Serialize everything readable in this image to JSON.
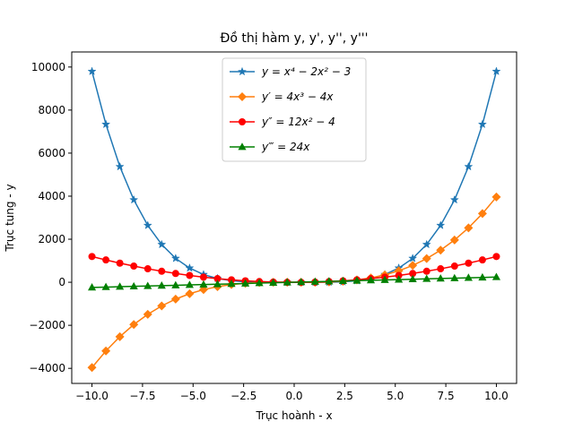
{
  "chart_data": {
    "type": "line",
    "title": "Đồ thị hàm y, y', y'', y'''",
    "xlabel": "Trục hoành - x",
    "ylabel": "Trục tung - y",
    "xlim": [
      -11,
      11
    ],
    "ylim": [
      -4700,
      10700
    ],
    "xticks": [
      -10.0,
      -7.5,
      -5.0,
      -2.5,
      0.0,
      2.5,
      5.0,
      7.5,
      10.0
    ],
    "xtick_labels": [
      "−10.0",
      "−7.5",
      "−5.0",
      "−2.5",
      "0.0",
      "2.5",
      "5.0",
      "7.5",
      "10.0"
    ],
    "yticks": [
      -4000,
      -2000,
      0,
      2000,
      4000,
      6000,
      8000,
      10000
    ],
    "ytick_labels": [
      "−4000",
      "−2000",
      "0",
      "2000",
      "4000",
      "6000",
      "8000",
      "10000"
    ],
    "grid": false,
    "legend_position": "top-center",
    "x": [
      -10.0,
      -9.31,
      -8.621,
      -7.931,
      -7.241,
      -6.552,
      -5.862,
      -5.172,
      -4.483,
      -3.793,
      -3.103,
      -2.414,
      -1.724,
      -1.034,
      -0.345,
      0.345,
      1.034,
      1.724,
      2.414,
      3.103,
      3.793,
      4.483,
      5.172,
      5.862,
      6.552,
      7.241,
      7.931,
      8.621,
      9.31,
      10.0
    ],
    "series": [
      {
        "name": "y = x⁴ − 2x² − 3",
        "color": "#1f77b4",
        "marker": "star",
        "values": [
          9797,
          7336,
          5371,
          3829,
          2641,
          1754,
          1109,
          659,
          360,
          175,
          70,
          19,
          0,
          -4,
          -3,
          -3,
          -4,
          0,
          19,
          70,
          175,
          360,
          659,
          1109,
          1754,
          2641,
          3829,
          5371,
          7336,
          9797
        ]
      },
      {
        "name": "y′ = 4x³ − 4x",
        "color": "#ff7f0e",
        "marker": "diamond",
        "values": [
          -3960,
          -3190,
          -2528,
          -1964,
          -1490,
          -1099,
          -782,
          -533,
          -342,
          -203,
          -107,
          -47,
          -14,
          0,
          1,
          -1,
          0,
          14,
          47,
          107,
          203,
          342,
          533,
          782,
          1099,
          1490,
          1964,
          2528,
          3190,
          3960
        ]
      },
      {
        "name": "y″ = 12x² − 4",
        "color": "#ff0000",
        "marker": "circle",
        "values": [
          1196,
          1036,
          888,
          751,
          625,
          511,
          408,
          317,
          237,
          169,
          112,
          66,
          32,
          9,
          -3,
          -3,
          9,
          32,
          66,
          112,
          169,
          237,
          317,
          408,
          511,
          625,
          751,
          888,
          1036,
          1196
        ]
      },
      {
        "name": "y‴ = 24x",
        "color": "#008000",
        "marker": "triangle",
        "values": [
          -240,
          -223,
          -207,
          -190,
          -174,
          -157,
          -141,
          -124,
          -108,
          -91,
          -74,
          -58,
          -41,
          -25,
          -8,
          8,
          25,
          41,
          58,
          74,
          91,
          108,
          124,
          141,
          157,
          174,
          190,
          207,
          223,
          240
        ]
      }
    ]
  }
}
